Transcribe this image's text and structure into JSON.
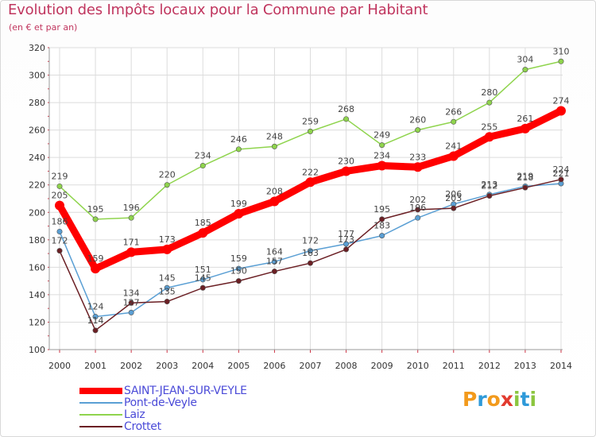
{
  "chart_data": {
    "type": "line",
    "title": "Evolution des Impôts locaux pour la Commune par Habitant",
    "subtitle": "(en € et par an)",
    "x": [
      "2000",
      "2001",
      "2002",
      "2003",
      "2004",
      "2005",
      "2006",
      "2007",
      "2008",
      "2009",
      "2010",
      "2011",
      "2012",
      "2013",
      "2014"
    ],
    "y_ticks": [
      "100",
      "120",
      "140",
      "160",
      "180",
      "200",
      "220",
      "240",
      "260",
      "280",
      "300",
      "320"
    ],
    "ylim": [
      100,
      320
    ],
    "grid": true,
    "legend_position": "bottom-left",
    "series": [
      {
        "name": "SAINT-JEAN-SUR-VEYLE",
        "color": "#ff0000",
        "values": [
          205,
          159,
          171,
          173,
          185,
          199,
          208,
          222,
          230,
          234,
          233,
          241,
          255,
          261,
          274
        ],
        "labels": [
          "205",
          "159",
          "171",
          "173",
          "185",
          "199",
          "208",
          "222",
          "230",
          "234",
          "233",
          "241",
          "255",
          "261",
          "274"
        ]
      },
      {
        "name": "Pont-de-Veyle",
        "color": "#5a9fd4",
        "values": [
          186,
          124,
          127,
          145,
          151,
          159,
          164,
          172,
          177,
          183,
          196,
          206,
          213,
          219,
          221
        ],
        "labels": [
          "186",
          "124",
          "127",
          "145",
          "151",
          "159",
          "164",
          "172",
          "177",
          "183",
          "196",
          "206",
          "213",
          "219",
          "221"
        ]
      },
      {
        "name": "Laiz",
        "color": "#8fd44d",
        "values": [
          219,
          195,
          196,
          220,
          234,
          246,
          248,
          259,
          268,
          249,
          260,
          266,
          280,
          304,
          310
        ],
        "labels": [
          "219",
          "195",
          "196",
          "220",
          "234",
          "246",
          "248",
          "259",
          "268",
          "249",
          "260",
          "266",
          "280",
          "304",
          "310"
        ]
      },
      {
        "name": "Crottet",
        "color": "#6b1f24",
        "values": [
          172,
          114,
          134,
          135,
          145,
          150,
          157,
          163,
          173,
          195,
          202,
          203,
          212,
          218,
          224
        ],
        "labels": [
          "172",
          "114",
          "134",
          "135",
          "145",
          "150",
          "157",
          "163",
          "173",
          "195",
          "202",
          "203",
          "212",
          "218",
          "224"
        ]
      }
    ]
  },
  "logo": {
    "letters": [
      "P",
      "r",
      "o",
      "x",
      "i",
      "t",
      "i"
    ],
    "colors": [
      "#f29a1c",
      "#2f9ad9",
      "#f29a1c",
      "#e23b2f",
      "#8cc63f",
      "#2f9ad9",
      "#8cc63f"
    ]
  }
}
